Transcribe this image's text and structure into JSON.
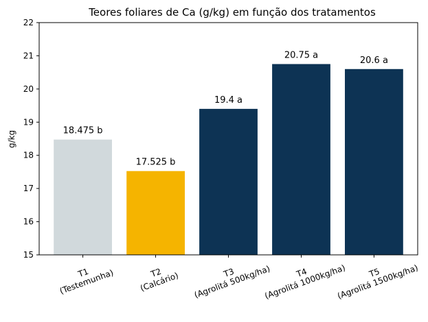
{
  "chart_data": {
    "type": "bar",
    "title": "Teores foliares de Ca (g/kg) em função dos tratamentos",
    "xlabel": "",
    "ylabel": "g/kg",
    "ylim": [
      15,
      22
    ],
    "yticks": [
      15,
      16,
      17,
      18,
      19,
      20,
      21,
      22
    ],
    "grid": false,
    "categories": [
      [
        "T1",
        "(Testemunha)"
      ],
      [
        "T2",
        "(Calcário)"
      ],
      [
        "T3",
        "(Agrolitá 500kg/ha)"
      ],
      [
        "T4",
        "(Agrolitá 1000kg/ha)"
      ],
      [
        "T5",
        "(Agrolitá 1500kg/ha)"
      ]
    ],
    "values": [
      18.475,
      17.525,
      19.4,
      20.75,
      20.6
    ],
    "data_labels": [
      "18.475 b",
      "17.525 b",
      "19.4 a",
      "20.75 a",
      "20.6 a"
    ],
    "colors": [
      "#d1d9dc",
      "#f5b400",
      "#0d3354",
      "#0d3354",
      "#0d3354"
    ]
  }
}
